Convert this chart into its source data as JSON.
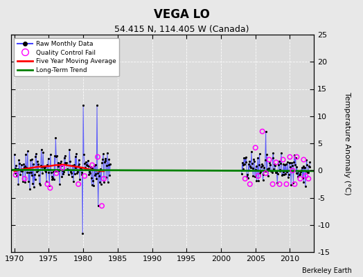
{
  "title": "VEGA LO",
  "subtitle": "54.415 N, 114.405 W (Canada)",
  "ylabel": "Temperature Anomaly (°C)",
  "credit": "Berkeley Earth",
  "xlim": [
    1969.5,
    2013.5
  ],
  "ylim": [
    -15,
    25
  ],
  "yticks": [
    -15,
    -10,
    -5,
    0,
    5,
    10,
    15,
    20,
    25
  ],
  "xticks": [
    1970,
    1975,
    1980,
    1985,
    1990,
    1995,
    2000,
    2005,
    2010
  ],
  "bg_color": "#e8e8e8",
  "plot_bg_color": "#dcdcdc",
  "grid_color": "white",
  "raw_line_color": "#4444ff",
  "raw_marker_color": "black",
  "qc_fail_color": "magenta",
  "moving_avg_color": "red",
  "trend_color": "green",
  "trend_x": [
    1969.5,
    2013.5
  ],
  "trend_y": [
    0.12,
    -0.08
  ],
  "moving_avg_x": [
    1970.0,
    1970.5,
    1971.0,
    1971.5,
    1972.0,
    1972.5,
    1973.0,
    1973.5,
    1974.0,
    1974.5,
    1975.0,
    1975.5,
    1976.0,
    1976.5,
    1977.0,
    1977.5,
    1978.0,
    1978.5,
    1979.0,
    1979.5,
    1980.0,
    1980.5,
    1981.0,
    1981.5,
    1982.0,
    1982.5,
    1983.0
  ],
  "moving_avg_y": [
    -0.1,
    0.0,
    0.2,
    0.3,
    0.4,
    0.5,
    0.6,
    0.7,
    0.7,
    0.8,
    0.8,
    0.9,
    1.0,
    1.0,
    1.1,
    1.0,
    0.9,
    0.8,
    0.7,
    0.6,
    0.5,
    0.3,
    0.2,
    0.1,
    0.0,
    -0.1,
    -0.1
  ],
  "qc_early_x": [
    1970.2,
    1971.5,
    1974.8,
    1975.2,
    1976.1,
    1977.0,
    1979.3,
    1980.2,
    1981.3,
    1982.1,
    1982.7,
    1983.0
  ],
  "qc_early_y": [
    -0.8,
    -1.5,
    -2.5,
    -3.2,
    -0.5,
    0.5,
    -2.5,
    -1.0,
    1.0,
    2.5,
    -6.5,
    -1.5
  ],
  "qc_late_x": [
    2003.5,
    2004.2,
    2005.0,
    2005.4,
    2006.0,
    2006.5,
    2007.0,
    2007.5,
    2008.0,
    2008.5,
    2009.0,
    2009.5,
    2010.0,
    2010.4,
    2010.7,
    2011.0,
    2011.5,
    2012.0,
    2012.3,
    2012.7
  ],
  "qc_late_y": [
    -1.5,
    -2.5,
    4.2,
    -1.0,
    7.2,
    -0.5,
    2.0,
    -2.5,
    1.5,
    -2.5,
    2.0,
    -2.5,
    2.5,
    0.0,
    -2.5,
    2.5,
    -1.5,
    2.0,
    -1.0,
    -1.5
  ]
}
